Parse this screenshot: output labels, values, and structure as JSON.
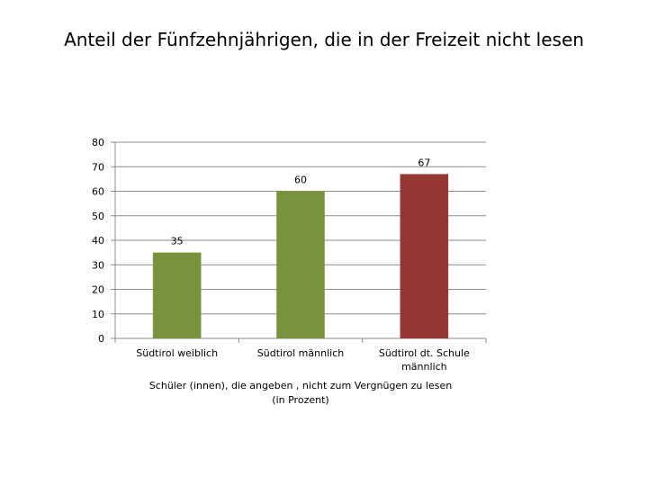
{
  "title": "Anteil der Fünfzehnjährigen, die in der Freizeit nicht lesen",
  "chart_data": {
    "type": "bar",
    "categories": [
      [
        "Südtirol weiblich"
      ],
      [
        "Südtirol männlich"
      ],
      [
        "Südtirol dt. Schule",
        "männlich"
      ]
    ],
    "values": [
      35,
      60,
      67
    ],
    "data_labels": [
      "35",
      "60",
      "67"
    ],
    "bar_colors": [
      "#77933c",
      "#77933c",
      "#953735"
    ],
    "xlabel": [
      "Schüler (innen), die angeben , nicht zum Vergnügen zu lesen",
      "(in Prozent)"
    ],
    "ylabel": "",
    "ylim": [
      0,
      80
    ],
    "yticks": [
      "0",
      "10",
      "20",
      "30",
      "40",
      "50",
      "60",
      "70",
      "80"
    ],
    "grid": true,
    "legend": "none"
  }
}
